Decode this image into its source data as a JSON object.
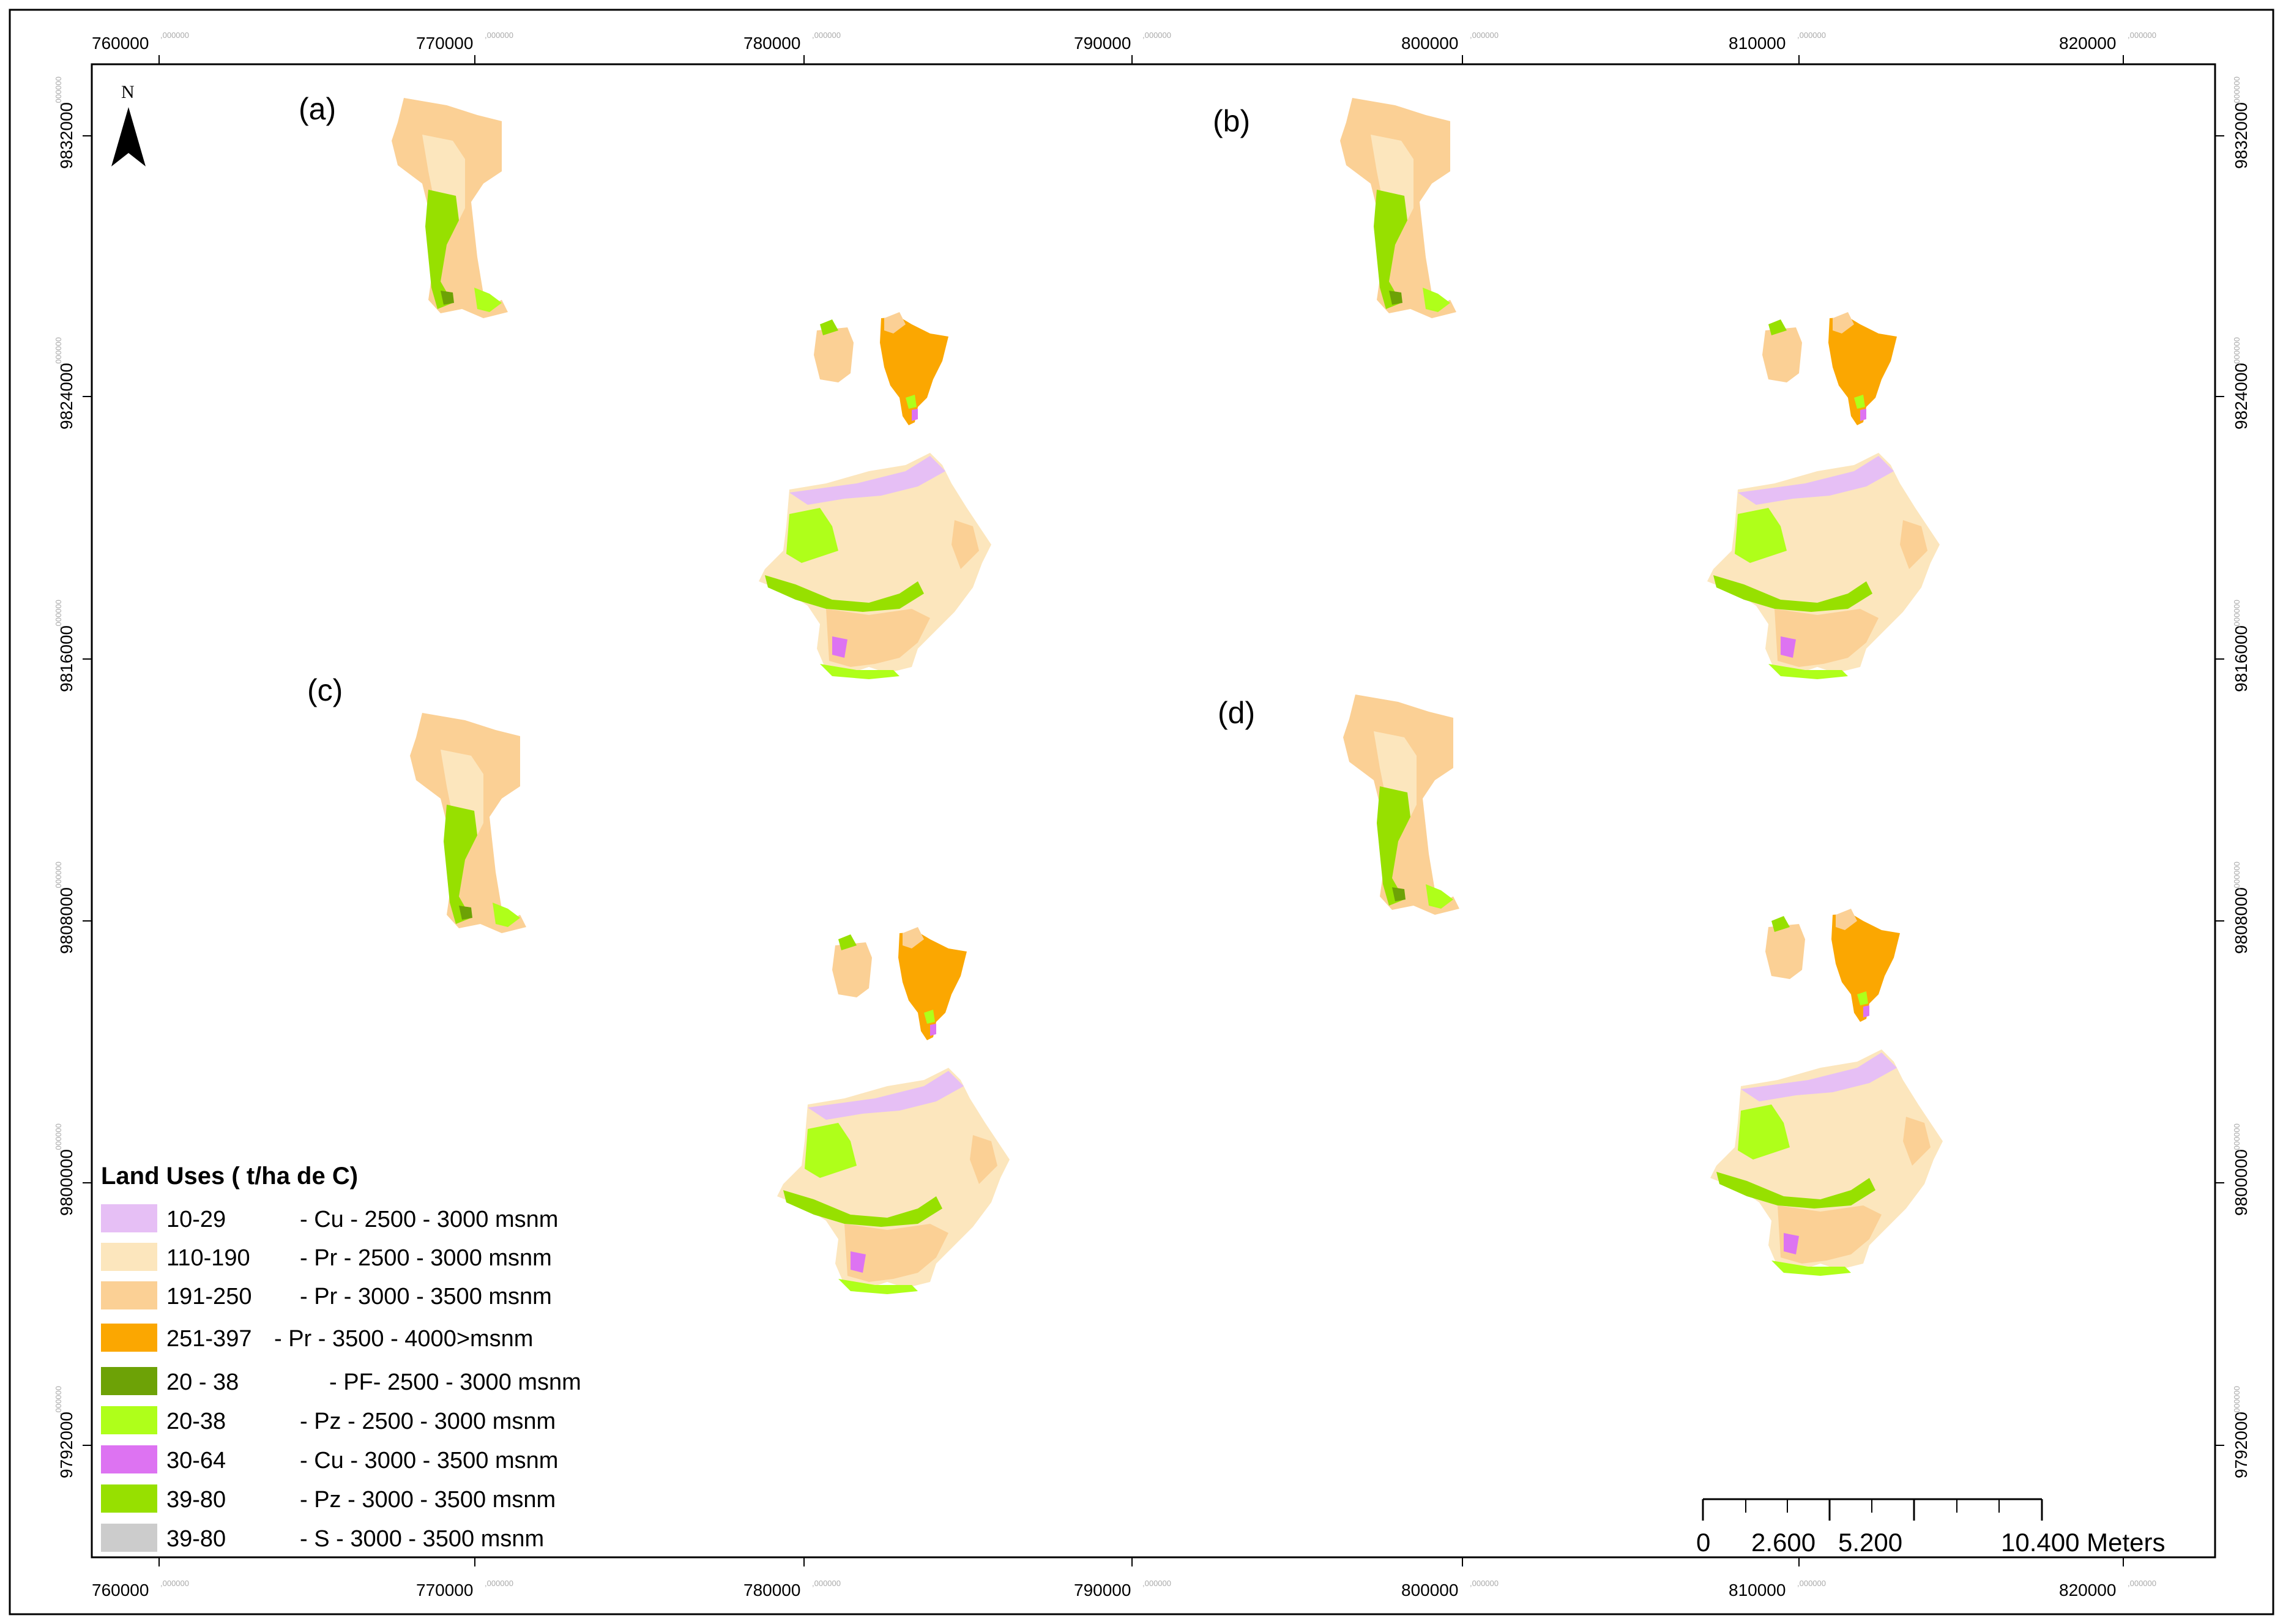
{
  "map": {
    "x_ticks": [
      {
        "main": "760000",
        "dec": ",000000"
      },
      {
        "main": "770000",
        "dec": ",000000"
      },
      {
        "main": "780000",
        "dec": ",000000"
      },
      {
        "main": "790000",
        "dec": ",000000"
      },
      {
        "main": "800000",
        "dec": ",000000"
      },
      {
        "main": "810000",
        "dec": ",000000"
      },
      {
        "main": "820000",
        "dec": ",000000"
      }
    ],
    "y_ticks": [
      {
        "main": "9832000",
        "dec": ",000000"
      },
      {
        "main": "9824000",
        "dec": ",000000"
      },
      {
        "main": "9816000",
        "dec": ",000000"
      },
      {
        "main": "9808000",
        "dec": ",000000"
      },
      {
        "main": "9800000",
        "dec": ",000000"
      },
      {
        "main": "9792000",
        "dec": ",000000"
      }
    ],
    "panels": [
      "(a)",
      "(b)",
      "(c)",
      "(d)"
    ],
    "north_arrow": {
      "letter": "N",
      "icon": "north-arrow-icon"
    },
    "legend": {
      "title": "Land Uses ( t/ha de C)",
      "items": [
        {
          "range": "10-29",
          "desc": "- Cu - 2500 - 3000 msnm",
          "color": "#e6bff5"
        },
        {
          "range": "110-190",
          "desc": "- Pr  - 2500 - 3000 msnm",
          "color": "#fce6bd"
        },
        {
          "range": "191-250",
          "desc": "- Pr  - 3000 - 3500 msnm",
          "color": "#fbd095"
        },
        {
          "range": "251-397",
          "desc": "- Pr  - 3500 - 4000>msnm",
          "color": "#fba701"
        },
        {
          "range": "20 - 38",
          "desc": "- PF- 2500 - 3000 msnm",
          "color": "#6da206"
        },
        {
          "range": "20-38",
          "desc": "- Pz - 2500 - 3000 msnm",
          "color": "#afff1a"
        },
        {
          "range": "30-64",
          "desc": "- Cu - 3000 - 3500 msnm",
          "color": "#dd73f2"
        },
        {
          "range": "39-80",
          "desc": "- Pz - 3000 - 3500 msnm",
          "color": "#97e000"
        },
        {
          "range": "39-80",
          "desc": "- S   - 3000 - 3500 msnm",
          "color": "#cccccc"
        }
      ]
    },
    "scale_bar": {
      "labels": [
        "0",
        "2.600",
        "5.200",
        "10.400 Meters"
      ]
    }
  }
}
